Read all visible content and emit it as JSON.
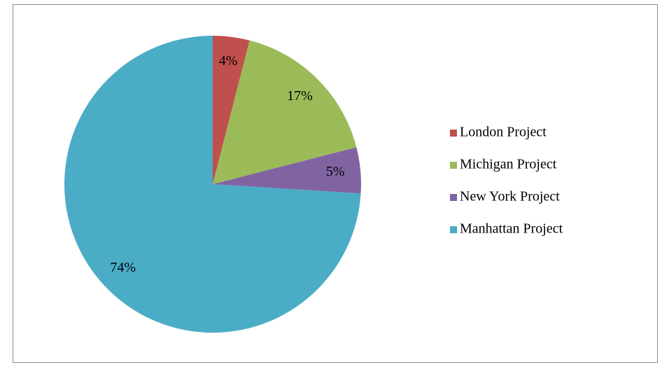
{
  "chart_data": {
    "type": "pie",
    "categories": [
      "London Project",
      "Michigan Project",
      "New York Project",
      "Manhattan Project"
    ],
    "values": [
      4,
      17,
      5,
      74
    ],
    "value_labels": [
      "4%",
      "17%",
      "5%",
      "74%"
    ],
    "colors": [
      "#c0504d",
      "#9bbb59",
      "#8064a2",
      "#4bacc6"
    ],
    "legend": "right"
  }
}
